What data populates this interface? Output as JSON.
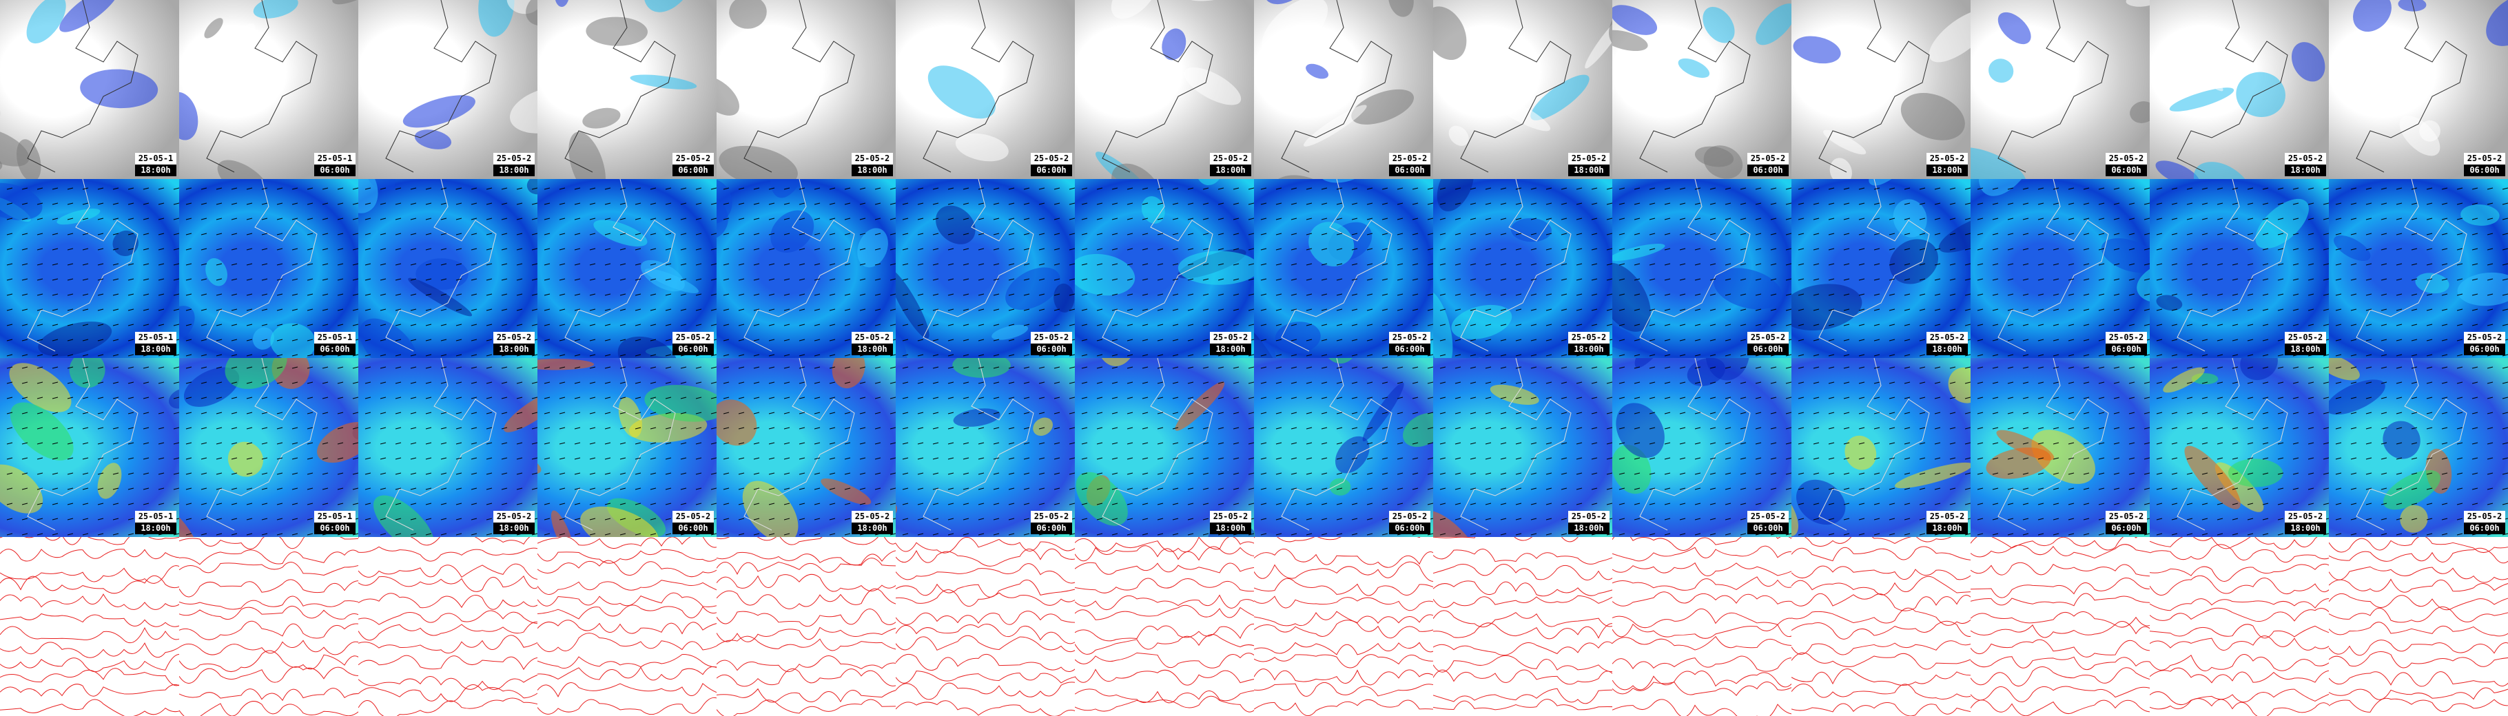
{
  "rows": [
    {
      "tiles": [
        {
          "date": "25-05-1",
          "time": "18:00h"
        },
        {
          "date": "25-05-1",
          "time": "06:00h"
        },
        {
          "date": "25-05-2",
          "time": "18:00h"
        },
        {
          "date": "25-05-2",
          "time": "06:00h"
        },
        {
          "date": "25-05-2",
          "time": "18:00h"
        },
        {
          "date": "25-05-2",
          "time": "06:00h"
        },
        {
          "date": "25-05-2",
          "time": "18:00h"
        },
        {
          "date": "25-05-2",
          "time": "06:00h"
        },
        {
          "date": "25-05-2",
          "time": "18:00h"
        },
        {
          "date": "25-05-2",
          "time": "06:00h"
        },
        {
          "date": "25-05-2",
          "time": "18:00h"
        },
        {
          "date": "25-05-2",
          "time": "06:00h"
        },
        {
          "date": "25-05-2",
          "time": "18:00h"
        },
        {
          "date": "25-05-2",
          "time": "06:00h"
        }
      ]
    },
    {
      "tiles": [
        {
          "date": "25-05-1",
          "time": "18:00h"
        },
        {
          "date": "25-05-1",
          "time": "06:00h"
        },
        {
          "date": "25-05-2",
          "time": "18:00h"
        },
        {
          "date": "25-05-2",
          "time": "06:00h"
        },
        {
          "date": "25-05-2",
          "time": "18:00h"
        },
        {
          "date": "25-05-2",
          "time": "06:00h"
        },
        {
          "date": "25-05-2",
          "time": "18:00h"
        },
        {
          "date": "25-05-2",
          "time": "06:00h"
        },
        {
          "date": "25-05-2",
          "time": "18:00h"
        },
        {
          "date": "25-05-2",
          "time": "06:00h"
        },
        {
          "date": "25-05-2",
          "time": "18:00h"
        },
        {
          "date": "25-05-2",
          "time": "06:00h"
        },
        {
          "date": "25-05-2",
          "time": "18:00h"
        },
        {
          "date": "25-05-2",
          "time": "06:00h"
        }
      ]
    },
    {
      "tiles": [
        {
          "date": "25-05-1",
          "time": "18:00h"
        },
        {
          "date": "25-05-1",
          "time": "06:00h"
        },
        {
          "date": "25-05-2",
          "time": "18:00h"
        },
        {
          "date": "25-05-2",
          "time": "06:00h"
        },
        {
          "date": "25-05-2",
          "time": "18:00h"
        },
        {
          "date": "25-05-2",
          "time": "06:00h"
        },
        {
          "date": "25-05-2",
          "time": "18:00h"
        },
        {
          "date": "25-05-2",
          "time": "06:00h"
        },
        {
          "date": "25-05-2",
          "time": "18:00h"
        },
        {
          "date": "25-05-2",
          "time": "06:00h"
        },
        {
          "date": "25-05-2",
          "time": "18:00h"
        },
        {
          "date": "25-05-2",
          "time": "06:00h"
        },
        {
          "date": "25-05-2",
          "time": "18:00h"
        },
        {
          "date": "25-05-2",
          "time": "06:00h"
        }
      ]
    }
  ]
}
